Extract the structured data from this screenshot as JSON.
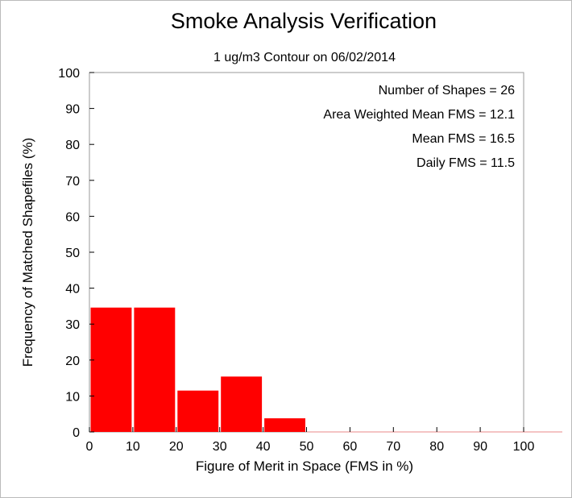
{
  "chart_data": {
    "type": "bar",
    "title": "Smoke Analysis Verification",
    "subtitle": "1 ug/m3 Contour on 06/02/2014",
    "xlabel": "Figure of Merit in Space (FMS in %)",
    "ylabel": "Frequency of Matched Shapefiles (%)",
    "xlim": [
      0,
      100
    ],
    "ylim": [
      0,
      100
    ],
    "xticks": [
      "0",
      "10",
      "20",
      "30",
      "40",
      "50",
      "60",
      "70",
      "80",
      "90",
      "100"
    ],
    "yticks": [
      "0",
      "10",
      "20",
      "30",
      "40",
      "50",
      "60",
      "70",
      "80",
      "90",
      "100"
    ],
    "bins": [
      {
        "start": 0,
        "end": 10,
        "value": 34.6
      },
      {
        "start": 10,
        "end": 20,
        "value": 34.6
      },
      {
        "start": 20,
        "end": 30,
        "value": 11.5
      },
      {
        "start": 30,
        "end": 40,
        "value": 15.4
      },
      {
        "start": 40,
        "end": 50,
        "value": 3.8
      },
      {
        "start": 50,
        "end": 60,
        "value": 0
      },
      {
        "start": 60,
        "end": 70,
        "value": 0
      },
      {
        "start": 70,
        "end": 80,
        "value": 0
      },
      {
        "start": 80,
        "end": 90,
        "value": 0
      },
      {
        "start": 90,
        "end": 100,
        "value": 0
      }
    ],
    "bar_color": "#ff0000",
    "annotations": [
      "Number of Shapes = 26",
      "Area Weighted Mean FMS = 12.1",
      "Mean FMS = 16.5",
      "Daily FMS = 11.5"
    ]
  }
}
